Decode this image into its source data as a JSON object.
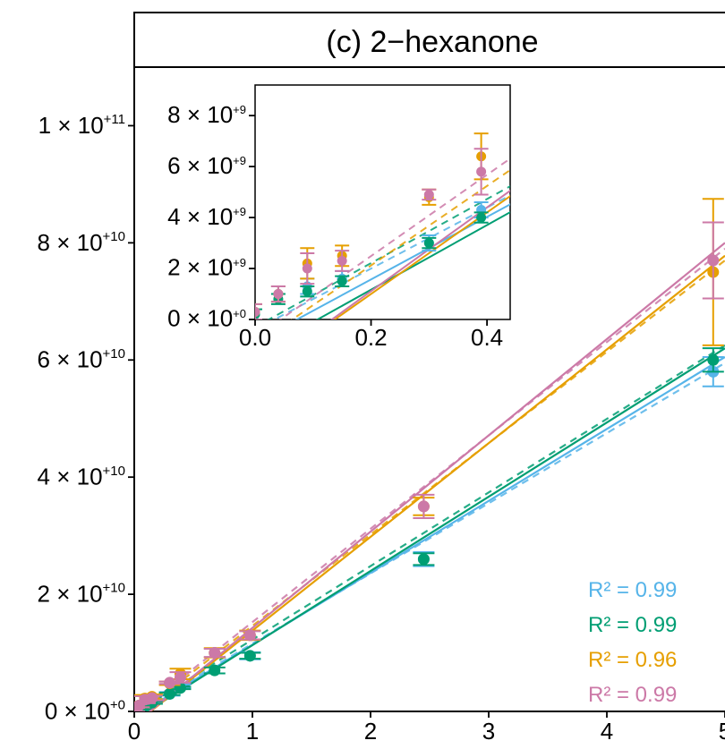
{
  "colors": {
    "blue": "#56B4E9",
    "green": "#009E73",
    "orange": "#E69F00",
    "pink": "#CC79A7"
  },
  "chart_data": {
    "type": "scatter",
    "title": "(c) 2−hexanone",
    "xlabel": "",
    "ylabel": "",
    "xlim": [
      0,
      5
    ],
    "ylim": [
      0,
      110000000000.0
    ],
    "x_ticks": [
      "0",
      "1",
      "2",
      "3",
      "4",
      "5"
    ],
    "y_ticks": [
      {
        "m": "0 × 10",
        "e": "+0"
      },
      {
        "m": "2 × 10",
        "e": "+10"
      },
      {
        "m": "4 × 10",
        "e": "+10"
      },
      {
        "m": "6 × 10",
        "e": "+10"
      },
      {
        "m": "8 × 10",
        "e": "+10"
      },
      {
        "m": "1 × 10",
        "e": "+11"
      }
    ],
    "series": [
      {
        "color": "blue",
        "points": [
          [
            0.04,
            1000000000.0
          ],
          [
            0.09,
            1300000000.0
          ],
          [
            0.15,
            1600000000.0
          ],
          [
            0.3,
            3000000000.0
          ],
          [
            0.39,
            4300000000.0
          ],
          [
            0.98,
            9500000000.0
          ],
          [
            2.45,
            26000000000.0
          ],
          [
            4.9,
            58000000000.0
          ]
        ],
        "errors": [
          300000000.0,
          300000000.0,
          300000000.0,
          300000000.0,
          300000000.0,
          600000000.0,
          1200000000.0,
          2500000000.0
        ],
        "fit_solid": [
          [
            -0.05,
            -1500000000.0
          ],
          [
            5.0,
            60500000000.0
          ]
        ],
        "fit_dashed": [
          [
            0.0,
            -400000000.0
          ],
          [
            5.0,
            59500000000.0
          ]
        ]
      },
      {
        "color": "green",
        "points": [
          [
            0.0,
            200000000.0
          ],
          [
            0.04,
            800000000.0
          ],
          [
            0.09,
            1100000000.0
          ],
          [
            0.15,
            1500000000.0
          ],
          [
            0.3,
            3000000000.0
          ],
          [
            0.39,
            4000000000.0
          ],
          [
            0.68,
            7000000000.0
          ],
          [
            0.98,
            9500000000.0
          ],
          [
            2.45,
            26000000000.0
          ],
          [
            4.9,
            60000000000.0
          ]
        ],
        "errors": [
          200000000.0,
          200000000.0,
          200000000.0,
          200000000.0,
          200000000.0,
          200000000.0,
          500000000.0,
          500000000.0,
          1000000000.0,
          2000000000.0
        ],
        "fit_solid": [
          [
            -0.05,
            -2000000000.0
          ],
          [
            5.0,
            62000000000.0
          ]
        ],
        "fit_dashed": [
          [
            0.0,
            -300000000.0
          ],
          [
            5.0,
            62500000000.0
          ]
        ]
      },
      {
        "color": "orange",
        "points": [
          [
            0.0,
            300000000.0
          ],
          [
            0.04,
            1000000000.0
          ],
          [
            0.09,
            2200000000.0
          ],
          [
            0.15,
            2500000000.0
          ],
          [
            0.3,
            4800000000.0
          ],
          [
            0.39,
            6400000000.0
          ],
          [
            0.68,
            10000000000.0
          ],
          [
            0.98,
            13000000000.0
          ],
          [
            2.45,
            35000000000.0
          ],
          [
            4.9,
            75000000000.0
          ]
        ],
        "errors": [
          300000000.0,
          300000000.0,
          600000000.0,
          400000000.0,
          300000000.0,
          900000000.0,
          800000000.0,
          800000000.0,
          1500000000.0,
          12500000000.0
        ],
        "fit_solid": [
          [
            -0.05,
            -3000000000.0
          ],
          [
            5.0,
            77800000000.0
          ]
        ],
        "fit_dashed": [
          [
            0.0,
            -1000000000.0
          ],
          [
            5.0,
            77000000000.0
          ]
        ]
      },
      {
        "color": "pink",
        "points": [
          [
            0.0,
            300000000.0
          ],
          [
            0.04,
            1000000000.0
          ],
          [
            0.09,
            2000000000.0
          ],
          [
            0.15,
            2300000000.0
          ],
          [
            0.3,
            4900000000.0
          ],
          [
            0.39,
            5800000000.0
          ],
          [
            0.68,
            10000000000.0
          ],
          [
            0.98,
            13000000000.0
          ],
          [
            2.45,
            35000000000.0
          ],
          [
            4.9,
            77000000000.0
          ]
        ],
        "errors": [
          300000000.0,
          300000000.0,
          600000000.0,
          400000000.0,
          200000000.0,
          900000000.0,
          700000000.0,
          700000000.0,
          2000000000.0,
          6500000000.0
        ],
        "fit_solid": [
          [
            -0.05,
            -3000000000.0
          ],
          [
            5.0,
            80000000000.0
          ]
        ],
        "fit_dashed": [
          [
            0.0,
            -700000000.0
          ],
          [
            5.0,
            79000000000.0
          ]
        ]
      }
    ],
    "annotations": [
      {
        "text": "R² = 0.99",
        "color": "blue"
      },
      {
        "text": "R² = 0.99",
        "color": "green"
      },
      {
        "text": "R² = 0.96",
        "color": "orange"
      },
      {
        "text": "R² = 0.99",
        "color": "pink"
      }
    ],
    "inset": {
      "xlim": [
        0,
        0.44
      ],
      "ylim": [
        0,
        9200000000.0
      ],
      "x_ticks": [
        "0.0",
        "0.2",
        "0.4"
      ],
      "y_ticks": [
        {
          "m": "0 × 10",
          "e": "+0"
        },
        {
          "m": "2 × 10",
          "e": "+9"
        },
        {
          "m": "4 × 10",
          "e": "+9"
        },
        {
          "m": "6 × 10",
          "e": "+9"
        },
        {
          "m": "8 × 10",
          "e": "+9"
        }
      ],
      "x_tick_values": [
        0,
        0.2,
        0.4
      ],
      "y_tick_values": [
        0,
        2000000000.0,
        4000000000.0,
        6000000000.0,
        8000000000.0
      ]
    },
    "x_tick_values": [
      0,
      1,
      2,
      3,
      4,
      5
    ],
    "y_tick_values": [
      0,
      20000000000.0,
      40000000000.0,
      60000000000.0,
      80000000000.0,
      100000000000.0
    ],
    "grid": false,
    "legend": "none"
  }
}
